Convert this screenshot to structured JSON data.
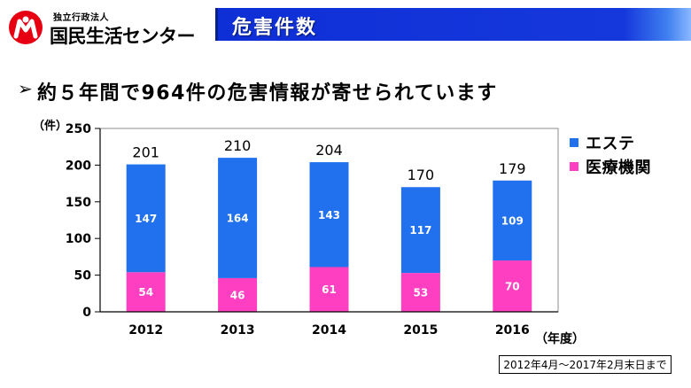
{
  "logo": {
    "org_type": "独立行政法人",
    "name": "国民生活センター",
    "icon": "consumer-center-logo-icon"
  },
  "header": {
    "title": "危害件数"
  },
  "headline": {
    "bullet": "➢",
    "text": "約５年間で964件の危害情報が寄せられています"
  },
  "colors": {
    "logo_red": "#e60012",
    "header_blue": "#0e2fd6"
  },
  "chart_data": {
    "type": "bar",
    "stacked": true,
    "categories": [
      "2012",
      "2013",
      "2014",
      "2015",
      "2016"
    ],
    "series": [
      {
        "name": "エステ",
        "values": [
          147,
          164,
          143,
          117,
          109
        ],
        "color": "#2171ef"
      },
      {
        "name": "医療機関",
        "values": [
          54,
          46,
          61,
          53,
          70
        ],
        "color": "#ff3fc2"
      }
    ],
    "totals": [
      201,
      210,
      204,
      170,
      179
    ],
    "ylabel": "（件）",
    "xlabel": "（年度）",
    "ylim": [
      0,
      250
    ],
    "yticks": [
      0,
      50,
      100,
      150,
      200,
      250
    ],
    "grid": false,
    "legend": "right"
  },
  "note": "2012年4月～2017年2月末日まで"
}
